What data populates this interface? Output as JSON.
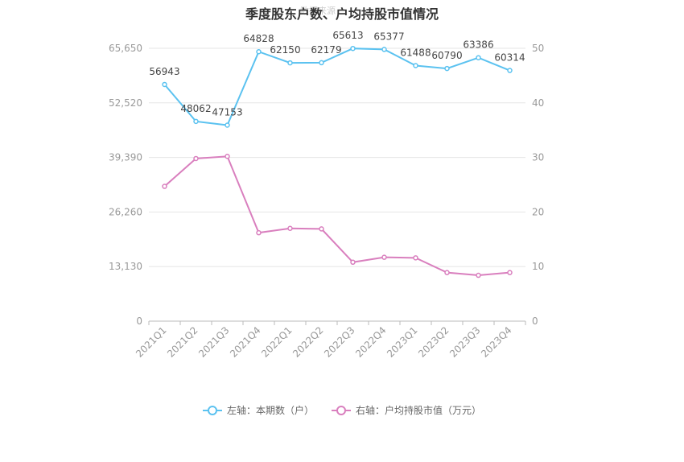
{
  "chart_data": {
    "type": "line",
    "title": "季度股东户数、户均持股市值情况",
    "watermark": "数据来源",
    "categories": [
      "2021Q1",
      "2021Q2",
      "2021Q3",
      "2021Q4",
      "2022Q1",
      "2022Q2",
      "2022Q3",
      "2022Q4",
      "2023Q1",
      "2023Q2",
      "2023Q3",
      "2023Q4"
    ],
    "left_axis": {
      "min": 0,
      "max": 65650,
      "ticks": [
        "0",
        "13,130",
        "26,260",
        "39,390",
        "52,520",
        "65,650"
      ]
    },
    "right_axis": {
      "min": 0,
      "max": 50,
      "ticks": [
        "0",
        "10",
        "20",
        "30",
        "40",
        "50"
      ]
    },
    "series": [
      {
        "name": "左轴：本期数（户）",
        "axis": "left",
        "color": "#5bc2f0",
        "values": [
          56943,
          48062,
          47153,
          64828,
          62150,
          62179,
          65613,
          65377,
          61488,
          60790,
          63386,
          60314
        ],
        "labels": [
          "56943",
          "48062",
          "47153",
          "64828",
          "62150",
          "62179",
          "65613",
          "65377",
          "61488",
          "60790",
          "63386",
          "60314"
        ]
      },
      {
        "name": "右轴：户均持股市值（万元）",
        "axis": "right",
        "color": "#d97fbe",
        "values": [
          24.7,
          29.8,
          30.2,
          16.2,
          17.0,
          16.9,
          10.8,
          11.7,
          11.6,
          8.9,
          8.4,
          8.9
        ]
      }
    ],
    "grid": true,
    "legend_position": "bottom"
  }
}
